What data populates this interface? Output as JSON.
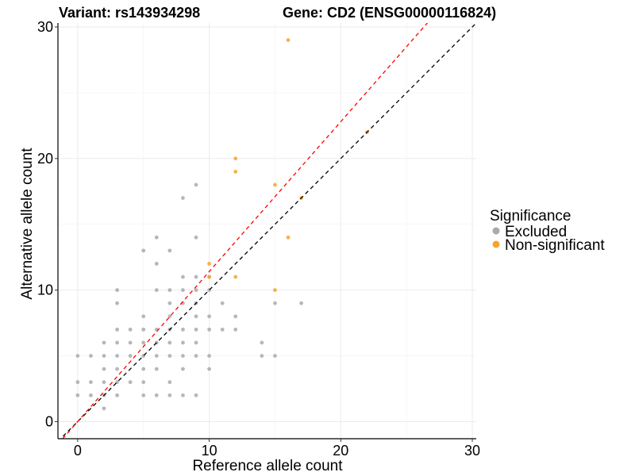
{
  "chart_data": {
    "type": "scatter",
    "title_left": "Variant: rs143934298",
    "title_right": "Gene: CD2 (ENSG00000116824)",
    "xlabel": "Reference allele count",
    "ylabel": "Alternative allele count",
    "xlim": [
      -1.5,
      30.3
    ],
    "ylim": [
      -1.3,
      30.3
    ],
    "xticks": [
      0,
      10,
      20,
      30
    ],
    "yticks": [
      0,
      10,
      20,
      30
    ],
    "minor_xticks": [
      5,
      15,
      25
    ],
    "minor_yticks": [
      5,
      15,
      25
    ],
    "grid": true,
    "reference_lines": [
      {
        "name": "identity",
        "slope": 1.0,
        "intercept": 0,
        "color": "#000000",
        "dash": "5,4"
      },
      {
        "name": "fitted",
        "slope": 1.14,
        "intercept": 0,
        "color": "#ff0000",
        "dash": "5,4"
      }
    ],
    "legend": {
      "title": "Significance",
      "position": "right",
      "entries": [
        {
          "label": "Excluded",
          "color": "#aaaaaa"
        },
        {
          "label": "Non-significant",
          "color": "#f5a52a"
        }
      ]
    },
    "series": [
      {
        "name": "Excluded",
        "color": "#aaaaaa",
        "points": [
          [
            0,
            2
          ],
          [
            0,
            3
          ],
          [
            0,
            5
          ],
          [
            1,
            2
          ],
          [
            1,
            3
          ],
          [
            1,
            5
          ],
          [
            2,
            1
          ],
          [
            2,
            2
          ],
          [
            2,
            3
          ],
          [
            2,
            4
          ],
          [
            2,
            5
          ],
          [
            2,
            6
          ],
          [
            3,
            2
          ],
          [
            3,
            3
          ],
          [
            3,
            4
          ],
          [
            3,
            5
          ],
          [
            3,
            6
          ],
          [
            3,
            7
          ],
          [
            3,
            9
          ],
          [
            3,
            10
          ],
          [
            4,
            3
          ],
          [
            4,
            5
          ],
          [
            4,
            6
          ],
          [
            4,
            7
          ],
          [
            5,
            2
          ],
          [
            5,
            3
          ],
          [
            5,
            4
          ],
          [
            5,
            5
          ],
          [
            5,
            6
          ],
          [
            5,
            7
          ],
          [
            5,
            8
          ],
          [
            5,
            13
          ],
          [
            6,
            2
          ],
          [
            6,
            4
          ],
          [
            6,
            5
          ],
          [
            6,
            6
          ],
          [
            6,
            7
          ],
          [
            6,
            10
          ],
          [
            6,
            12
          ],
          [
            6,
            14
          ],
          [
            7,
            2
          ],
          [
            7,
            3
          ],
          [
            7,
            5
          ],
          [
            7,
            6
          ],
          [
            7,
            7
          ],
          [
            7,
            8
          ],
          [
            7,
            9
          ],
          [
            7,
            10
          ],
          [
            7,
            13
          ],
          [
            8,
            2
          ],
          [
            8,
            4
          ],
          [
            8,
            5
          ],
          [
            8,
            6
          ],
          [
            8,
            7
          ],
          [
            8,
            9
          ],
          [
            8,
            10
          ],
          [
            8,
            11
          ],
          [
            8,
            17
          ],
          [
            9,
            2
          ],
          [
            9,
            5
          ],
          [
            9,
            6
          ],
          [
            9,
            7
          ],
          [
            9,
            8
          ],
          [
            9,
            9
          ],
          [
            9,
            10
          ],
          [
            9,
            11
          ],
          [
            9,
            14
          ],
          [
            9,
            18
          ],
          [
            10,
            4
          ],
          [
            10,
            5
          ],
          [
            10,
            7
          ],
          [
            10,
            8
          ],
          [
            10,
            10
          ],
          [
            10,
            11
          ],
          [
            11,
            7
          ],
          [
            11,
            9
          ],
          [
            12,
            7
          ],
          [
            12,
            8
          ],
          [
            14,
            5
          ],
          [
            14,
            6
          ],
          [
            15,
            5
          ],
          [
            15,
            9
          ],
          [
            17,
            9
          ]
        ]
      },
      {
        "name": "Non-significant",
        "color": "#f5a52a",
        "points": [
          [
            10,
            11
          ],
          [
            10,
            12
          ],
          [
            12,
            11
          ],
          [
            12,
            19
          ],
          [
            12,
            20
          ],
          [
            15,
            10
          ],
          [
            15,
            18
          ],
          [
            16,
            14
          ],
          [
            16,
            29
          ],
          [
            17,
            17
          ],
          [
            22,
            22
          ]
        ]
      }
    ]
  }
}
